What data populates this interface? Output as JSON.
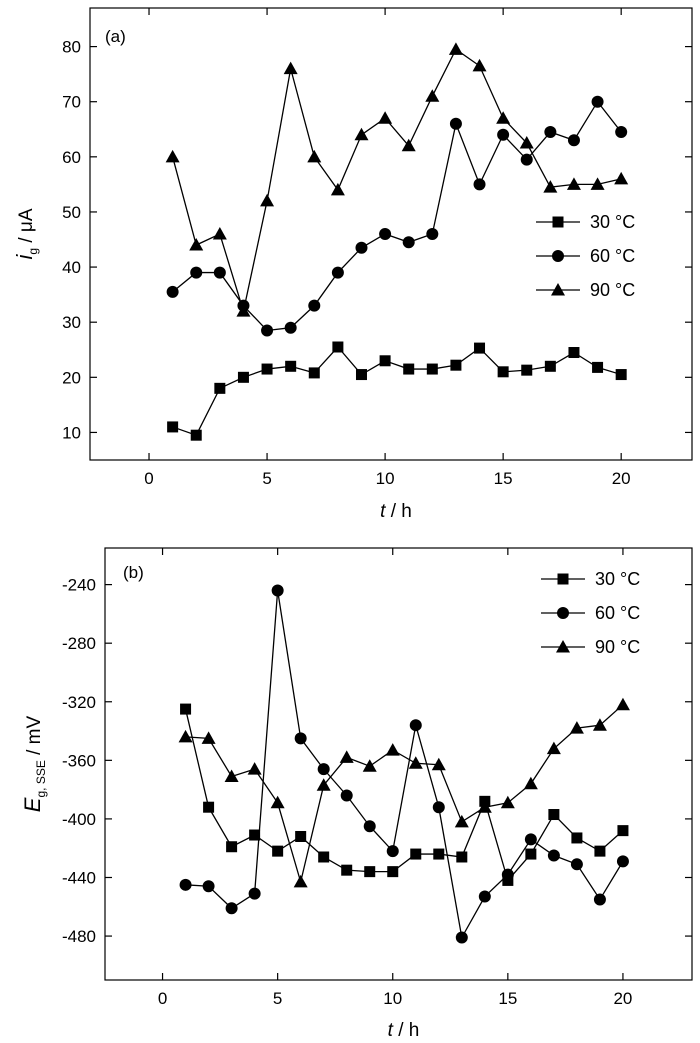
{
  "chart_data": [
    {
      "type": "line",
      "panel_label": "(a)",
      "xlabel": {
        "var": "t",
        "unit": " / h"
      },
      "ylabel": {
        "var": "i",
        "sub": "g",
        "unit": " / μA"
      },
      "xlim": [
        -2.5,
        23
      ],
      "ylim": [
        5,
        87
      ],
      "xticks": [
        0,
        5,
        10,
        15,
        20
      ],
      "yticks": [
        10,
        20,
        30,
        40,
        50,
        60,
        70,
        80
      ],
      "legend_position": "right-center",
      "x": [
        1,
        2,
        3,
        4,
        5,
        6,
        7,
        8,
        9,
        10,
        11,
        12,
        13,
        14,
        15,
        16,
        17,
        18,
        19,
        20
      ],
      "series": [
        {
          "name": "30 °C",
          "marker": "square",
          "values": [
            11,
            9.5,
            18,
            20,
            21.5,
            22,
            20.8,
            25.5,
            20.5,
            23,
            21.5,
            21.5,
            22.2,
            25.3,
            21,
            21.3,
            22,
            24.5,
            21.8,
            20.5
          ]
        },
        {
          "name": "60 °C",
          "marker": "circle",
          "values": [
            35.5,
            39,
            39,
            33,
            28.5,
            29,
            33,
            39,
            43.5,
            46,
            44.5,
            46,
            66,
            55,
            64,
            59.5,
            64.5,
            63,
            70,
            64.5
          ]
        },
        {
          "name": "90 °C",
          "marker": "triangle",
          "values": [
            60,
            44,
            46,
            32,
            52,
            76,
            60,
            54,
            64,
            67,
            62,
            71,
            79.5,
            76.5,
            67,
            62.5,
            54.5,
            55,
            55,
            56
          ]
        }
      ]
    },
    {
      "type": "line",
      "panel_label": "(b)",
      "xlabel": {
        "var": "t",
        "unit": " / h"
      },
      "ylabel": {
        "var": "E",
        "sub": "g, SSE",
        "unit": " / mV"
      },
      "xlim": [
        -2.5,
        23
      ],
      "ylim": [
        -510,
        -215
      ],
      "xticks": [
        0,
        5,
        10,
        15,
        20
      ],
      "yticks": [
        -240,
        -280,
        -320,
        -360,
        -400,
        -440,
        -480
      ],
      "legend_position": "top-right",
      "x": [
        1,
        2,
        3,
        4,
        5,
        6,
        7,
        8,
        9,
        10,
        11,
        12,
        13,
        14,
        15,
        16,
        17,
        18,
        19,
        20
      ],
      "series": [
        {
          "name": "30 °C",
          "marker": "square",
          "values": [
            -325,
            -392,
            -419,
            -411,
            -422,
            -412,
            -426,
            -435,
            -436,
            -436,
            -424,
            -424,
            -426,
            -388,
            -442,
            -424,
            -397,
            -413,
            -422,
            -408
          ]
        },
        {
          "name": "60 °C",
          "marker": "circle",
          "values": [
            -445,
            -446,
            -461,
            -451,
            -244,
            -345,
            -366,
            -384,
            -405,
            -422,
            -336,
            -392,
            -481,
            -453,
            -438,
            -414,
            -425,
            -431,
            -455,
            -429
          ]
        },
        {
          "name": "90 °C",
          "marker": "triangle",
          "values": [
            -344,
            -345,
            -371,
            -366,
            -389,
            -443,
            -377,
            -358,
            -364,
            -353,
            -362,
            -363,
            -402,
            -392,
            -389,
            -376,
            -352,
            -338,
            -336,
            -322
          ]
        }
      ]
    }
  ]
}
